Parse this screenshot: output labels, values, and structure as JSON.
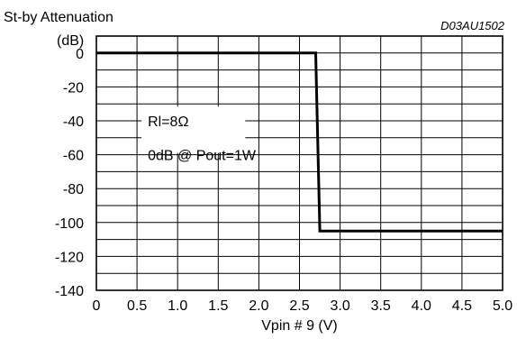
{
  "chart_data": {
    "type": "line",
    "ylabel_line1": "St-by Attenuation",
    "ylabel_line2": "(dB)",
    "xlabel": "Vpin # 9 (V)",
    "code": "D03AU1502",
    "xlim": [
      0,
      5.0
    ],
    "ylim": [
      -140,
      10
    ],
    "x_ticks": [
      "0",
      "0.5",
      "1.0",
      "1.5",
      "2.0",
      "2.5",
      "3.0",
      "3.5",
      "4.0",
      "4.5",
      "5.0"
    ],
    "x_tick_values": [
      0,
      0.5,
      1.0,
      1.5,
      2.0,
      2.5,
      3.0,
      3.5,
      4.0,
      4.5,
      5.0
    ],
    "y_ticks": [
      "0",
      "-20",
      "-40",
      "-60",
      "-80",
      "-100",
      "-120",
      "-140"
    ],
    "y_tick_values": [
      0,
      -20,
      -40,
      -60,
      -80,
      -100,
      -120,
      -140
    ],
    "y_minor_grid": [
      -10,
      -30,
      -50,
      -70,
      -90,
      -110,
      -130
    ],
    "grid": true,
    "annotation_lines": [
      "Rl=8Ω",
      "0dB @ Pout=1W"
    ],
    "series": [
      {
        "x": [
          0,
          2.7,
          2.75,
          5.0
        ],
        "y": [
          0,
          0,
          -105,
          -105
        ]
      }
    ]
  }
}
